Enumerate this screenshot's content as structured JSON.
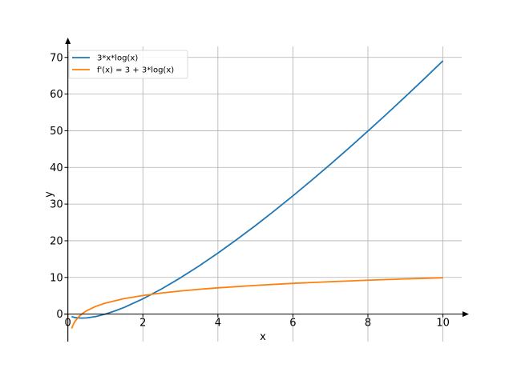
{
  "chart_data": {
    "type": "line",
    "xlabel": "x",
    "ylabel": "y",
    "xlim": [
      -0.1,
      10.5
    ],
    "ylim": [
      -7.5,
      73
    ],
    "xticks": [
      0,
      2,
      4,
      6,
      8,
      10
    ],
    "yticks": [
      0,
      10,
      20,
      30,
      40,
      50,
      60,
      70
    ],
    "grid": true,
    "legend_position": "upper-left",
    "series": [
      {
        "name": "3*x*log(x)",
        "color": "#1f77b4",
        "x": [
          0.1,
          0.2,
          0.37,
          0.5,
          0.75,
          1,
          1.25,
          1.5,
          2,
          2.5,
          3,
          3.5,
          4,
          4.5,
          5,
          5.5,
          6,
          6.5,
          7,
          7.5,
          8,
          8.5,
          9,
          9.5,
          10
        ],
        "y": [
          -0.69,
          -0.97,
          -1.1,
          -1.04,
          -0.65,
          0,
          0.84,
          1.82,
          4.16,
          6.87,
          9.89,
          13.15,
          16.64,
          20.31,
          24.14,
          28.13,
          32.25,
          36.5,
          40.86,
          45.34,
          49.91,
          54.57,
          59.32,
          64.15,
          69.08
        ]
      },
      {
        "name": "f'(x) = 3 + 3*log(x)",
        "color": "#ff7f0e",
        "x": [
          0.1,
          0.15,
          0.2,
          0.3,
          0.4,
          0.5,
          0.75,
          1,
          1.5,
          2,
          2.5,
          3,
          3.5,
          4,
          5,
          6,
          7,
          8,
          9,
          10
        ],
        "y": [
          -3.91,
          -2.69,
          -1.83,
          -0.61,
          0.25,
          0.92,
          2.14,
          3,
          4.22,
          5.08,
          5.75,
          6.3,
          6.76,
          7.16,
          7.83,
          8.38,
          8.84,
          9.24,
          9.59,
          9.91
        ]
      }
    ]
  }
}
